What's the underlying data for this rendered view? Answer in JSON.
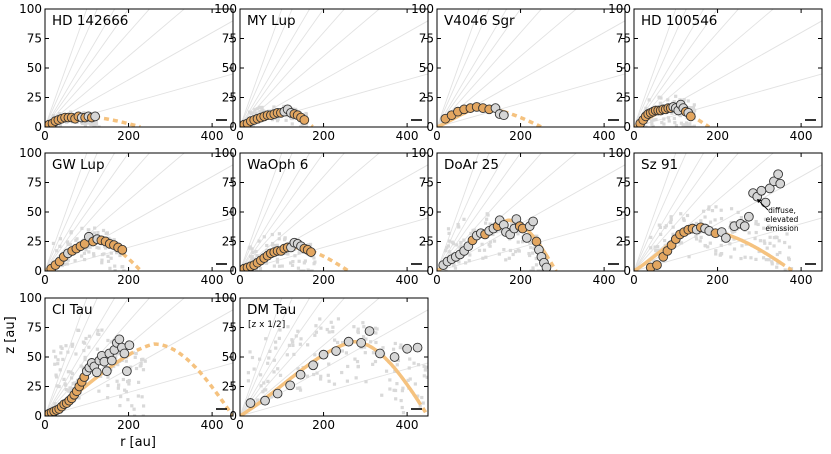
{
  "figure": {
    "ylabel": "z [au]",
    "xlabel": "r [au]",
    "xlim": [
      0,
      450
    ],
    "ylim": [
      0,
      100
    ],
    "x_ticks": [
      0,
      200,
      400
    ],
    "y_ticks": [
      0,
      25,
      50,
      75,
      100
    ],
    "colors": {
      "fit_curve": "#f5c27f",
      "marker_orange": "#e3a660",
      "marker_gray": "#d6d6d6",
      "marker_edge": "#333333",
      "background_points": "#d9d9d9",
      "aspect_lines": "#e2e2e2",
      "axes": "#000000"
    }
  },
  "chart_data": [
    {
      "type": "scatter",
      "title": "HD 142666",
      "note": "",
      "xlim": [
        0,
        450
      ],
      "ylim": [
        0,
        100
      ],
      "fit_curve": {
        "peak_r": 80,
        "peak_z": 9,
        "r_max": 230
      },
      "points": [
        [
          10,
          2,
          1
        ],
        [
          18,
          3,
          1
        ],
        [
          25,
          5,
          1
        ],
        [
          32,
          6,
          1
        ],
        [
          40,
          7,
          1
        ],
        [
          48,
          8,
          1
        ],
        [
          56,
          8,
          1
        ],
        [
          64,
          8,
          1
        ],
        [
          72,
          7,
          1
        ],
        [
          80,
          9,
          1
        ],
        [
          88,
          8,
          0
        ],
        [
          96,
          8,
          1
        ],
        [
          104,
          9,
          0
        ],
        [
          112,
          8,
          1
        ],
        [
          120,
          9,
          0
        ]
      ],
      "cloud": {
        "r_range": [
          20,
          130
        ],
        "z_center": 8,
        "z_spread": 12,
        "count": 60
      }
    },
    {
      "type": "scatter",
      "title": "MY Lup",
      "note": "",
      "xlim": [
        0,
        450
      ],
      "ylim": [
        0,
        100
      ],
      "fit_curve": {
        "peak_r": 110,
        "peak_z": 11,
        "r_max": 175
      },
      "points": [
        [
          10,
          2,
          1
        ],
        [
          18,
          3,
          1
        ],
        [
          26,
          5,
          1
        ],
        [
          34,
          6,
          1
        ],
        [
          42,
          7,
          1
        ],
        [
          50,
          8,
          1
        ],
        [
          58,
          9,
          1
        ],
        [
          66,
          10,
          1
        ],
        [
          74,
          10,
          1
        ],
        [
          82,
          11,
          1
        ],
        [
          90,
          12,
          1
        ],
        [
          98,
          12,
          1
        ],
        [
          106,
          13,
          0
        ],
        [
          114,
          15,
          0
        ],
        [
          122,
          12,
          0
        ],
        [
          130,
          11,
          1
        ],
        [
          138,
          10,
          1
        ],
        [
          146,
          8,
          1
        ],
        [
          154,
          6,
          1
        ]
      ],
      "cloud": {
        "r_range": [
          20,
          160
        ],
        "z_center": 12,
        "z_spread": 14,
        "count": 70
      }
    },
    {
      "type": "scatter",
      "title": "V4046 Sgr",
      "note": "",
      "xlim": [
        0,
        450
      ],
      "ylim": [
        0,
        100
      ],
      "fit_curve": {
        "peak_r": 100,
        "peak_z": 16,
        "r_max": 250
      },
      "points": [
        [
          20,
          7,
          1
        ],
        [
          35,
          10,
          1
        ],
        [
          50,
          13,
          1
        ],
        [
          65,
          15,
          1
        ],
        [
          80,
          16,
          1
        ],
        [
          95,
          17,
          1
        ],
        [
          110,
          16,
          1
        ],
        [
          125,
          15,
          1
        ],
        [
          140,
          16,
          0
        ],
        [
          150,
          11,
          0
        ],
        [
          160,
          10,
          0
        ]
      ],
      "cloud": {
        "r_range": [
          10,
          0
        ],
        "z_center": 0,
        "z_spread": 0,
        "count": 0
      }
    },
    {
      "type": "scatter",
      "title": "HD 100546",
      "note": "",
      "xlim": [
        0,
        450
      ],
      "ylim": [
        0,
        100
      ],
      "fit_curve": {
        "peak_r": 80,
        "peak_z": 15,
        "r_max": 180
      },
      "points": [
        [
          15,
          3,
          1
        ],
        [
          22,
          6,
          1
        ],
        [
          28,
          9,
          1
        ],
        [
          34,
          11,
          1
        ],
        [
          40,
          12,
          1
        ],
        [
          46,
          13,
          1
        ],
        [
          52,
          14,
          1
        ],
        [
          58,
          14,
          1
        ],
        [
          64,
          14,
          1
        ],
        [
          70,
          15,
          1
        ],
        [
          76,
          15,
          1
        ],
        [
          82,
          16,
          1
        ],
        [
          88,
          16,
          1
        ],
        [
          94,
          17,
          0
        ],
        [
          100,
          16,
          0
        ],
        [
          106,
          14,
          0
        ],
        [
          112,
          19,
          0
        ],
        [
          118,
          16,
          0
        ],
        [
          124,
          13,
          1
        ],
        [
          130,
          12,
          0
        ],
        [
          136,
          9,
          1
        ]
      ],
      "cloud": {
        "r_range": [
          20,
          150
        ],
        "z_center": 15,
        "z_spread": 26,
        "count": 80
      }
    },
    {
      "type": "scatter",
      "title": "GW Lup",
      "note": "",
      "xlim": [
        0,
        450
      ],
      "ylim": [
        0,
        100
      ],
      "fit_curve": {
        "peak_r": 120,
        "peak_z": 25,
        "r_max": 230
      },
      "points": [
        [
          15,
          2,
          1
        ],
        [
          25,
          5,
          1
        ],
        [
          35,
          8,
          1
        ],
        [
          45,
          12,
          1
        ],
        [
          55,
          15,
          0
        ],
        [
          65,
          17,
          1
        ],
        [
          75,
          19,
          1
        ],
        [
          85,
          21,
          1
        ],
        [
          95,
          23,
          1
        ],
        [
          105,
          29,
          0
        ],
        [
          115,
          25,
          1
        ],
        [
          125,
          27,
          0
        ],
        [
          135,
          26,
          1
        ],
        [
          145,
          25,
          1
        ],
        [
          155,
          23,
          1
        ],
        [
          165,
          22,
          1
        ],
        [
          175,
          20,
          1
        ],
        [
          185,
          18,
          1
        ]
      ],
      "cloud": {
        "r_range": [
          20,
          190
        ],
        "z_center": 24,
        "z_spread": 30,
        "count": 90
      }
    },
    {
      "type": "scatter",
      "title": "WaOph 6",
      "note": "",
      "xlim": [
        0,
        450
      ],
      "ylim": [
        0,
        100
      ],
      "fit_curve": {
        "peak_r": 120,
        "peak_z": 20,
        "r_max": 260
      },
      "points": [
        [
          10,
          2,
          1
        ],
        [
          18,
          3,
          1
        ],
        [
          26,
          4,
          1
        ],
        [
          34,
          5,
          1
        ],
        [
          42,
          7,
          1
        ],
        [
          50,
          9,
          1
        ],
        [
          58,
          11,
          1
        ],
        [
          66,
          13,
          1
        ],
        [
          74,
          15,
          1
        ],
        [
          82,
          16,
          1
        ],
        [
          90,
          17,
          1
        ],
        [
          98,
          17,
          1
        ],
        [
          106,
          19,
          1
        ],
        [
          114,
          20,
          1
        ],
        [
          122,
          20,
          0
        ],
        [
          130,
          24,
          0
        ],
        [
          138,
          23,
          0
        ],
        [
          146,
          21,
          0
        ],
        [
          154,
          19,
          1
        ],
        [
          162,
          18,
          1
        ],
        [
          170,
          16,
          1
        ]
      ],
      "cloud": {
        "r_range": [
          20,
          180
        ],
        "z_center": 18,
        "z_spread": 28,
        "count": 90
      }
    },
    {
      "type": "scatter",
      "title": "DoAr 25",
      "note": "",
      "xlim": [
        0,
        450
      ],
      "ylim": [
        0,
        100
      ],
      "fit_curve": {
        "peak_r": 170,
        "peak_z": 43,
        "r_max": 285
      },
      "points": [
        [
          15,
          5,
          0
        ],
        [
          25,
          8,
          0
        ],
        [
          35,
          10,
          0
        ],
        [
          45,
          12,
          0
        ],
        [
          55,
          14,
          0
        ],
        [
          65,
          17,
          0
        ],
        [
          75,
          21,
          0
        ],
        [
          85,
          26,
          1
        ],
        [
          95,
          30,
          0
        ],
        [
          105,
          32,
          0
        ],
        [
          115,
          31,
          1
        ],
        [
          125,
          34,
          0
        ],
        [
          135,
          36,
          0
        ],
        [
          145,
          38,
          1
        ],
        [
          150,
          43,
          0
        ],
        [
          160,
          39,
          0
        ],
        [
          165,
          33,
          0
        ],
        [
          175,
          31,
          0
        ],
        [
          185,
          36,
          0
        ],
        [
          190,
          44,
          0
        ],
        [
          198,
          38,
          1
        ],
        [
          205,
          36,
          1
        ],
        [
          215,
          28,
          0
        ],
        [
          222,
          38,
          0
        ],
        [
          230,
          42,
          0
        ],
        [
          238,
          25,
          1
        ],
        [
          244,
          18,
          0
        ],
        [
          250,
          12,
          0
        ],
        [
          256,
          7,
          0
        ],
        [
          262,
          3,
          0
        ]
      ],
      "cloud": {
        "r_range": [
          20,
          260
        ],
        "z_center": 30,
        "z_spread": 40,
        "count": 110
      }
    },
    {
      "type": "scatter",
      "title": "Sz 91",
      "note": "",
      "annotation": "diffuse,\nelevated\nemission",
      "xlim": [
        0,
        450
      ],
      "ylim": [
        0,
        100
      ],
      "fit_curve": {
        "peak_r": 150,
        "peak_z": 35,
        "r_max": 380
      },
      "points": [
        [
          40,
          3,
          1
        ],
        [
          55,
          5,
          1
        ],
        [
          70,
          12,
          1
        ],
        [
          80,
          17,
          1
        ],
        [
          90,
          22,
          1
        ],
        [
          100,
          27,
          1
        ],
        [
          110,
          31,
          1
        ],
        [
          120,
          33,
          1
        ],
        [
          130,
          35,
          1
        ],
        [
          140,
          36,
          1
        ],
        [
          150,
          35,
          0
        ],
        [
          160,
          37,
          1
        ],
        [
          170,
          36,
          0
        ],
        [
          180,
          34,
          0
        ],
        [
          195,
          32,
          1
        ],
        [
          210,
          33,
          0
        ],
        [
          220,
          28,
          0
        ],
        [
          240,
          38,
          0
        ],
        [
          255,
          40,
          0
        ],
        [
          265,
          38,
          0
        ],
        [
          275,
          46,
          0
        ],
        [
          285,
          66,
          0
        ],
        [
          295,
          63,
          0
        ],
        [
          305,
          68,
          0
        ],
        [
          315,
          58,
          0
        ],
        [
          325,
          70,
          0
        ],
        [
          335,
          76,
          0
        ],
        [
          345,
          82,
          0
        ],
        [
          350,
          74,
          0
        ]
      ],
      "cloud": {
        "r_range": [
          40,
          380
        ],
        "z_center": 34,
        "z_spread": 42,
        "count": 130
      }
    },
    {
      "type": "scatter",
      "title": "CI Tau",
      "note": "",
      "xlim": [
        0,
        450
      ],
      "ylim": [
        0,
        100
      ],
      "fit_curve": {
        "peak_r": 260,
        "peak_z": 61,
        "r_max": 450
      },
      "points": [
        [
          10,
          2,
          1
        ],
        [
          16,
          3,
          1
        ],
        [
          22,
          4,
          1
        ],
        [
          28,
          5,
          1
        ],
        [
          34,
          6,
          1
        ],
        [
          40,
          8,
          1
        ],
        [
          46,
          10,
          1
        ],
        [
          52,
          11,
          1
        ],
        [
          58,
          13,
          1
        ],
        [
          64,
          15,
          1
        ],
        [
          70,
          18,
          1
        ],
        [
          76,
          21,
          1
        ],
        [
          82,
          25,
          1
        ],
        [
          88,
          29,
          1
        ],
        [
          94,
          33,
          1
        ],
        [
          100,
          38,
          0
        ],
        [
          106,
          41,
          0
        ],
        [
          112,
          45,
          0
        ],
        [
          118,
          42,
          0
        ],
        [
          124,
          37,
          0
        ],
        [
          130,
          47,
          0
        ],
        [
          136,
          51,
          0
        ],
        [
          142,
          46,
          0
        ],
        [
          148,
          38,
          0
        ],
        [
          154,
          53,
          0
        ],
        [
          160,
          47,
          0
        ],
        [
          166,
          56,
          0
        ],
        [
          172,
          62,
          0
        ],
        [
          178,
          65,
          0
        ],
        [
          184,
          58,
          0
        ],
        [
          190,
          53,
          0
        ],
        [
          196,
          38,
          0
        ],
        [
          202,
          60,
          0
        ]
      ],
      "cloud": {
        "r_range": [
          20,
          240
        ],
        "z_center": 48,
        "z_spread": 60,
        "count": 130
      }
    },
    {
      "type": "scatter",
      "title": "DM Tau",
      "note": "[z x 1/2]",
      "xlim": [
        0,
        450
      ],
      "ylim": [
        0,
        100
      ],
      "fit_curve": {
        "peak_r": 270,
        "peak_z": 63,
        "r_max": 450
      },
      "points": [
        [
          25,
          11,
          0
        ],
        [
          60,
          13,
          0
        ],
        [
          90,
          19,
          0
        ],
        [
          120,
          26,
          0
        ],
        [
          145,
          35,
          0
        ],
        [
          175,
          43,
          0
        ],
        [
          200,
          52,
          0
        ],
        [
          230,
          55,
          0
        ],
        [
          260,
          63,
          0
        ],
        [
          290,
          62,
          0
        ],
        [
          310,
          72,
          0
        ],
        [
          335,
          53,
          0
        ],
        [
          370,
          50,
          0
        ],
        [
          400,
          57,
          0
        ],
        [
          425,
          58,
          0
        ]
      ],
      "cloud": {
        "r_range": [
          20,
          450
        ],
        "z_center": 55,
        "z_spread": 60,
        "count": 150
      }
    }
  ]
}
